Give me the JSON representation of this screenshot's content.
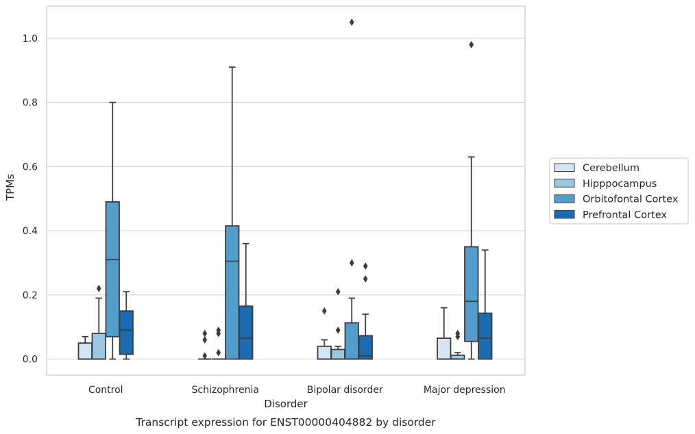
{
  "caption": "Transcript expression for ENST00000404882 by disorder",
  "chart_data": {
    "type": "boxplot",
    "xlabel": "Disorder",
    "ylabel": "TPMs",
    "ylim": [
      -0.05,
      1.1
    ],
    "yticks": [
      0.0,
      0.2,
      0.4,
      0.6,
      0.8,
      1.0
    ],
    "ytick_labels": [
      "0.0",
      "0.2",
      "0.4",
      "0.6",
      "0.8",
      "1.0"
    ],
    "grid": "horizontal",
    "legend_position": "right",
    "categories": [
      "Control",
      "Schizophrenia",
      "Bipolar disorder",
      "Major depression"
    ],
    "series": [
      {
        "name": "Cerebellum",
        "color": "#d3e4f3",
        "boxes": [
          {
            "whislo": 0.0,
            "q1": 0.0,
            "med": 0.0,
            "q3": 0.05,
            "whishi": 0.07,
            "fliers": []
          },
          {
            "whislo": 0.0,
            "q1": 0.0,
            "med": 0.0,
            "q3": 0.0,
            "whishi": 0.0,
            "fliers": [
              0.01,
              0.06,
              0.08
            ]
          },
          {
            "whislo": 0.0,
            "q1": 0.0,
            "med": 0.0,
            "q3": 0.04,
            "whishi": 0.06,
            "fliers": [
              0.15
            ]
          },
          {
            "whislo": 0.0,
            "q1": 0.0,
            "med": 0.0,
            "q3": 0.065,
            "whishi": 0.16,
            "fliers": []
          }
        ]
      },
      {
        "name": "Hipppocampus",
        "color": "#9ac8e0",
        "boxes": [
          {
            "whislo": 0.0,
            "q1": 0.0,
            "med": 0.0,
            "q3": 0.08,
            "whishi": 0.19,
            "fliers": [
              0.22
            ]
          },
          {
            "whislo": 0.0,
            "q1": 0.0,
            "med": 0.0,
            "q3": 0.0,
            "whishi": 0.0,
            "fliers": [
              0.02,
              0.08,
              0.09
            ]
          },
          {
            "whislo": 0.0,
            "q1": 0.0,
            "med": 0.0,
            "q3": 0.03,
            "whishi": 0.04,
            "fliers": [
              0.09,
              0.21
            ]
          },
          {
            "whislo": 0.0,
            "q1": 0.0,
            "med": 0.0,
            "q3": 0.012,
            "whishi": 0.02,
            "fliers": [
              0.07,
              0.08
            ]
          }
        ]
      },
      {
        "name": "Orbitofontal Cortex",
        "color": "#529dcc",
        "boxes": [
          {
            "whislo": 0.0,
            "q1": 0.07,
            "med": 0.31,
            "q3": 0.49,
            "whishi": 0.8,
            "fliers": []
          },
          {
            "whislo": 0.0,
            "q1": 0.0,
            "med": 0.305,
            "q3": 0.415,
            "whishi": 0.91,
            "fliers": []
          },
          {
            "whislo": 0.0,
            "q1": 0.0,
            "med": 0.0,
            "q3": 0.113,
            "whishi": 0.19,
            "fliers": [
              0.3,
              1.05
            ]
          },
          {
            "whislo": 0.0,
            "q1": 0.055,
            "med": 0.18,
            "q3": 0.35,
            "whishi": 0.63,
            "fliers": [
              0.98
            ]
          }
        ]
      },
      {
        "name": "Prefrontal Cortex",
        "color": "#1c6aaf",
        "boxes": [
          {
            "whislo": 0.0,
            "q1": 0.015,
            "med": 0.09,
            "q3": 0.15,
            "whishi": 0.21,
            "fliers": []
          },
          {
            "whislo": 0.0,
            "q1": 0.0,
            "med": 0.065,
            "q3": 0.165,
            "whishi": 0.36,
            "fliers": []
          },
          {
            "whislo": 0.0,
            "q1": 0.0,
            "med": 0.01,
            "q3": 0.073,
            "whishi": 0.14,
            "fliers": [
              0.25,
              0.29
            ]
          },
          {
            "whislo": 0.0,
            "q1": 0.0,
            "med": 0.065,
            "q3": 0.143,
            "whishi": 0.34,
            "fliers": []
          }
        ]
      }
    ]
  }
}
